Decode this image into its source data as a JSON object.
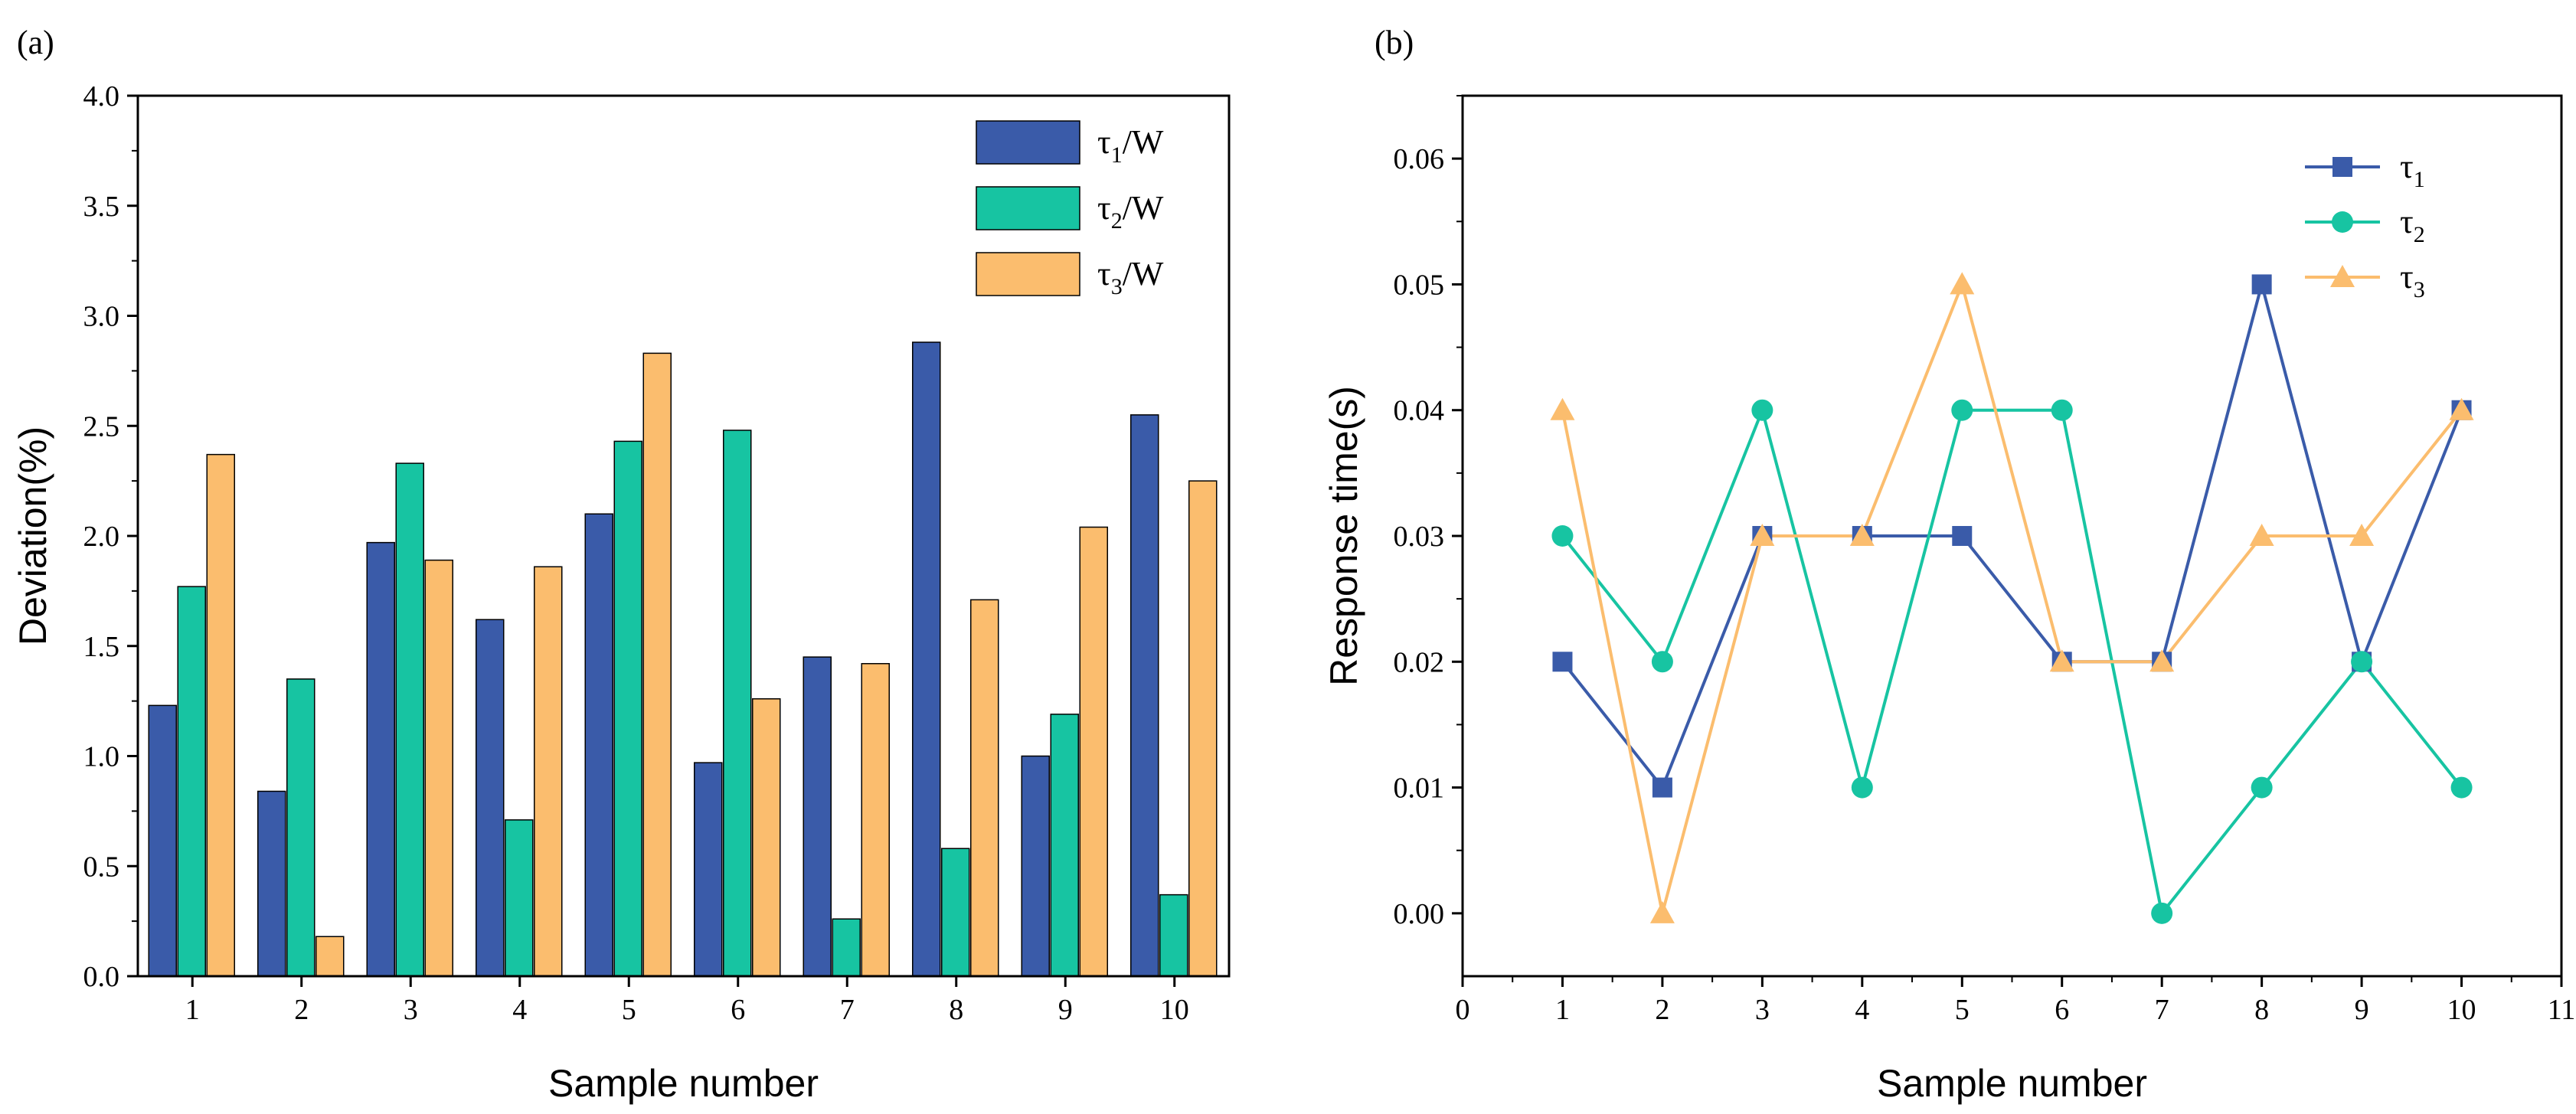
{
  "chart_data": [
    {
      "panel_label": "(a)",
      "type": "bar",
      "xlabel": "Sample number",
      "ylabel": "Deviation(%)",
      "categories": [
        "1",
        "2",
        "3",
        "4",
        "5",
        "6",
        "7",
        "8",
        "9",
        "10"
      ],
      "ylim": [
        0,
        4.0
      ],
      "yticks": [
        "0.0",
        "0.5",
        "1.0",
        "1.5",
        "2.0",
        "2.5",
        "3.0",
        "3.5",
        "4.0"
      ],
      "legend_position": "top-right",
      "series": [
        {
          "name": "τ1/W",
          "base": "τ",
          "sub": "1",
          "suffix": "/W",
          "color": "#3a5ba9",
          "values": [
            1.23,
            0.84,
            1.97,
            1.62,
            2.1,
            0.97,
            1.45,
            2.88,
            1.0,
            2.55
          ]
        },
        {
          "name": "τ2/W",
          "base": "τ",
          "sub": "2",
          "suffix": "/W",
          "color": "#17c4a2",
          "values": [
            1.77,
            1.35,
            2.33,
            0.71,
            2.43,
            2.48,
            0.26,
            0.58,
            1.19,
            0.37
          ]
        },
        {
          "name": "τ3/W",
          "base": "τ",
          "sub": "3",
          "suffix": "/W",
          "color": "#fbbd6e",
          "values": [
            2.37,
            0.18,
            1.89,
            1.86,
            2.83,
            1.26,
            1.42,
            1.71,
            2.04,
            2.25
          ]
        }
      ]
    },
    {
      "panel_label": "(b)",
      "type": "line",
      "xlabel": "Sample number",
      "ylabel": "Response time(s)",
      "x": [
        1,
        2,
        3,
        4,
        5,
        6,
        7,
        8,
        9,
        10
      ],
      "xlim": [
        0,
        11
      ],
      "ylim": [
        -0.005,
        0.065
      ],
      "xticks": [
        "0",
        "1",
        "2",
        "3",
        "4",
        "5",
        "6",
        "7",
        "8",
        "9",
        "10",
        "11"
      ],
      "yticks": [
        "0.00",
        "0.01",
        "0.02",
        "0.03",
        "0.04",
        "0.05",
        "0.06"
      ],
      "legend_position": "top-right",
      "series": [
        {
          "name": "τ1",
          "base": "τ",
          "sub": "1",
          "marker": "square",
          "color": "#3a5ba9",
          "values": [
            0.02,
            0.01,
            0.03,
            0.03,
            0.03,
            0.02,
            0.02,
            0.05,
            0.02,
            0.04
          ]
        },
        {
          "name": "τ2",
          "base": "τ",
          "sub": "2",
          "marker": "circle",
          "color": "#17c4a2",
          "values": [
            0.03,
            0.02,
            0.04,
            0.01,
            0.04,
            0.04,
            0.0,
            0.01,
            0.02,
            0.01
          ]
        },
        {
          "name": "τ3",
          "base": "τ",
          "sub": "3",
          "marker": "triangle",
          "color": "#fbbd6e",
          "values": [
            0.04,
            0.0,
            0.03,
            0.03,
            0.05,
            0.02,
            0.02,
            0.03,
            0.03,
            0.04
          ]
        }
      ]
    }
  ]
}
